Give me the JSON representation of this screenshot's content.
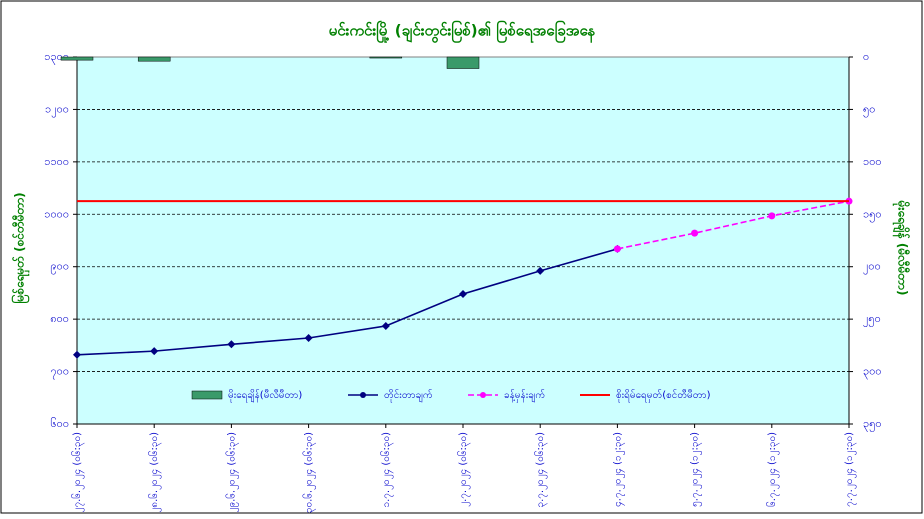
{
  "chart_data": {
    "type": "line",
    "title": "မင်းကင်းမြို့ (ချင်းတွင်းမြစ်)၏ မြစ်ရေအခြေအနေ",
    "y_label": "မြစ်ရေမှတ် (စင်တီမီတာ)",
    "y2_label": "မိုးရေချိန် (မီလီမီတာ)",
    "categories": [
      "၂၇.၆.၂၀၂၄ (၀၆:၃၀)",
      "၂၈.၆.၂၀၂၄ (၀၆:၃၀)",
      "၂၉.၆.၂၀၂၄ (၀၆:၃၀)",
      "၃၀.၆.၂၀၂၄ (၀၆:၃၀)",
      "၁.၇.၂၀၂၄ (၀၆:၃၀)",
      "၂.၇.၂၀၂၄ (၀၆:၃၀)",
      "၃.၇.၂၀၂၄ (၀၆:၃၀)",
      "၄.၇.၂၀၂၄ (၁၂:၃၀)",
      "၅.၇.၂၀၂၄ (၁၂:၃၀)",
      "၆.၇.၂၀၂၄ (၁၂:၃၀)",
      "၇.၇.၂၀၂၄ (၁၂:၃၀)"
    ],
    "series": [
      {
        "name": "မိုးရေချိန်(မီလီမီတာ)",
        "type": "bar",
        "axis": "y2",
        "color": "#3a9a6a",
        "values": [
          3,
          4,
          0,
          0,
          1,
          11,
          0,
          0,
          0,
          0,
          0
        ]
      },
      {
        "name": "တိုင်းတာချက်",
        "type": "line",
        "color": "#000080",
        "marker": "diamond",
        "values": [
          732,
          739,
          752,
          764,
          787,
          848,
          892,
          934,
          null,
          null,
          null
        ]
      },
      {
        "name": "ခန့်မှန်းချက်",
        "type": "line",
        "color": "#ff00ff",
        "dashed": true,
        "marker": "circle",
        "values": [
          null,
          null,
          null,
          null,
          null,
          null,
          null,
          934,
          964,
          997,
          1025
        ]
      },
      {
        "name": "စိုးရိမ်ရေမှတ်(စင်တီမီတာ)",
        "type": "hline",
        "color": "#ff0000",
        "value": 1025
      }
    ],
    "ylim": [
      600,
      1300
    ],
    "yticks": [
      {
        "value": 600,
        "label": "၆၀၀"
      },
      {
        "value": 700,
        "label": "၇၀၀"
      },
      {
        "value": 800,
        "label": "၈၀၀"
      },
      {
        "value": 900,
        "label": "၉၀၀"
      },
      {
        "value": 1000,
        "label": "၁၀၀၀"
      },
      {
        "value": 1100,
        "label": "၁၁၀၀"
      },
      {
        "value": 1200,
        "label": "၁၂၀၀"
      },
      {
        "value": 1300,
        "label": "၁၃၀၀"
      }
    ],
    "y2lim": [
      350,
      0
    ],
    "y2ticks": [
      {
        "value": 0,
        "label": "၀"
      },
      {
        "value": 50,
        "label": "၅၀"
      },
      {
        "value": 100,
        "label": "၁၀၀"
      },
      {
        "value": 150,
        "label": "၁၅၀"
      },
      {
        "value": 200,
        "label": "၂၀၀"
      },
      {
        "value": 250,
        "label": "၂၅၀"
      },
      {
        "value": 300,
        "label": "၃၀၀"
      },
      {
        "value": 350,
        "label": "၃၅၀"
      }
    ],
    "grid": true,
    "background": "#ccffff"
  }
}
